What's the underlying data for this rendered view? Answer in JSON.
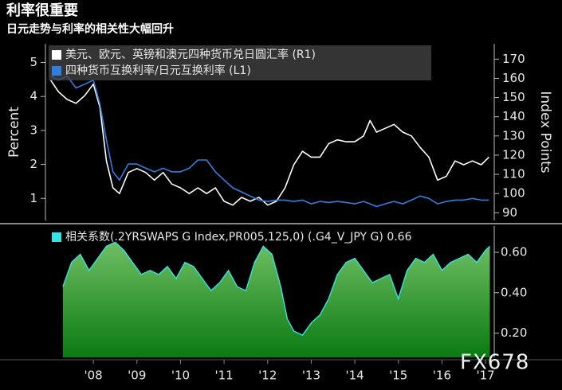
{
  "title": "利率很重要",
  "subtitle": "日元走势与利率的相关性大幅回升",
  "watermark": "FX678",
  "chart_data": [
    {
      "type": "line",
      "ylabel": "Percent",
      "y2label": "Index Points",
      "xlim": [
        2007.4,
        2017.7
      ],
      "ylim": [
        0.35,
        5.55
      ],
      "yticks": [
        1,
        2,
        3,
        4,
        5
      ],
      "y2lim": [
        86,
        178
      ],
      "y2ticks": [
        90,
        100,
        110,
        120,
        130,
        140,
        150,
        160,
        170
      ],
      "legend": "top-left",
      "x": [
        2007.52,
        2007.7,
        2007.9,
        2008.1,
        2008.3,
        2008.5,
        2008.65,
        2008.8,
        2008.95,
        2009.1,
        2009.3,
        2009.5,
        2009.7,
        2009.9,
        2010.1,
        2010.3,
        2010.5,
        2010.7,
        2010.9,
        2011.1,
        2011.3,
        2011.5,
        2011.7,
        2011.9,
        2012.1,
        2012.3,
        2012.5,
        2012.7,
        2012.9,
        2013.1,
        2013.3,
        2013.5,
        2013.7,
        2013.9,
        2014.1,
        2014.3,
        2014.5,
        2014.7,
        2014.85,
        2015.0,
        2015.2,
        2015.4,
        2015.6,
        2015.8,
        2016.0,
        2016.2,
        2016.4,
        2016.6,
        2016.8,
        2017.0,
        2017.2,
        2017.4,
        2017.58
      ],
      "series": [
        {
          "name": "美元、欧元、英镑和澳元四种货币兑日圆汇率 (R1)",
          "color": "#ffffff",
          "axis": "y2",
          "values": [
            159,
            153,
            149,
            147,
            151,
            157,
            145,
            117,
            103,
            100,
            111,
            113,
            111,
            107,
            111,
            105,
            103,
            100,
            103,
            100,
            103,
            96,
            94,
            98,
            96,
            98,
            94,
            96,
            103,
            115,
            122,
            119,
            119,
            126,
            128,
            127,
            127,
            130,
            138,
            132,
            134,
            136,
            132,
            130,
            124,
            119,
            107,
            109,
            117,
            115,
            117,
            115,
            119
          ]
        },
        {
          "name": "四种货币互换利率/日元互换利率 (L1)",
          "color": "#2f7fe0",
          "values": [
            4.6,
            4.48,
            4.6,
            4.25,
            4.36,
            4.48,
            3.78,
            2.72,
            1.78,
            1.54,
            2.01,
            2.01,
            1.89,
            1.78,
            1.89,
            1.78,
            1.78,
            1.89,
            2.13,
            2.13,
            1.78,
            1.54,
            1.31,
            1.19,
            1.07,
            0.95,
            0.91,
            0.95,
            0.95,
            0.91,
            0.95,
            0.84,
            0.91,
            0.88,
            0.91,
            0.88,
            0.84,
            0.91,
            0.84,
            0.76,
            0.84,
            0.91,
            0.84,
            0.95,
            1.07,
            1.0,
            0.84,
            0.91,
            0.95,
            0.95,
            1.0,
            0.95,
            0.95
          ]
        }
      ]
    },
    {
      "type": "area",
      "xlim": [
        2007.4,
        2017.7
      ],
      "xticks": [
        {
          "value": 2008.5,
          "label": "'08"
        },
        {
          "value": 2009.5,
          "label": "'09"
        },
        {
          "value": 2010.5,
          "label": "'10"
        },
        {
          "value": 2011.5,
          "label": "'11"
        },
        {
          "value": 2012.5,
          "label": "'12"
        },
        {
          "value": 2013.5,
          "label": "'13"
        },
        {
          "value": 2014.5,
          "label": "'14"
        },
        {
          "value": 2015.5,
          "label": "'15"
        },
        {
          "value": 2016.5,
          "label": "'16"
        },
        {
          "value": 2017.5,
          "label": "'17"
        }
      ],
      "ylim": [
        0.08,
        0.73
      ],
      "yticks": [
        {
          "value": 0.2,
          "label": "0.20"
        },
        {
          "value": 0.4,
          "label": "0.40"
        },
        {
          "value": 0.6,
          "label": "0.60"
        }
      ],
      "legend": "top-left",
      "x": [
        2007.8,
        2008.0,
        2008.2,
        2008.4,
        2008.6,
        2008.8,
        2009.0,
        2009.2,
        2009.4,
        2009.6,
        2009.8,
        2010.0,
        2010.2,
        2010.4,
        2010.6,
        2010.8,
        2011.0,
        2011.2,
        2011.4,
        2011.6,
        2011.8,
        2012.0,
        2012.2,
        2012.4,
        2012.6,
        2012.8,
        2012.95,
        2013.1,
        2013.3,
        2013.5,
        2013.7,
        2013.9,
        2014.1,
        2014.3,
        2014.5,
        2014.7,
        2014.9,
        2015.1,
        2015.3,
        2015.5,
        2015.7,
        2015.9,
        2016.1,
        2016.3,
        2016.5,
        2016.7,
        2016.9,
        2017.1,
        2017.3,
        2017.5,
        2017.6
      ],
      "series": [
        {
          "name": "相关系数(.2YRSWAPS G Index,PR005,125,0) (.G4_V_JPY G) 0.66",
          "color": "#33e6e6",
          "values": [
            0.43,
            0.55,
            0.59,
            0.51,
            0.57,
            0.63,
            0.65,
            0.61,
            0.55,
            0.49,
            0.51,
            0.49,
            0.53,
            0.47,
            0.55,
            0.53,
            0.47,
            0.41,
            0.45,
            0.51,
            0.43,
            0.41,
            0.55,
            0.63,
            0.59,
            0.43,
            0.27,
            0.21,
            0.19,
            0.25,
            0.29,
            0.37,
            0.49,
            0.55,
            0.57,
            0.51,
            0.45,
            0.47,
            0.49,
            0.37,
            0.51,
            0.57,
            0.55,
            0.59,
            0.51,
            0.55,
            0.57,
            0.59,
            0.55,
            0.61,
            0.63
          ]
        }
      ]
    }
  ]
}
